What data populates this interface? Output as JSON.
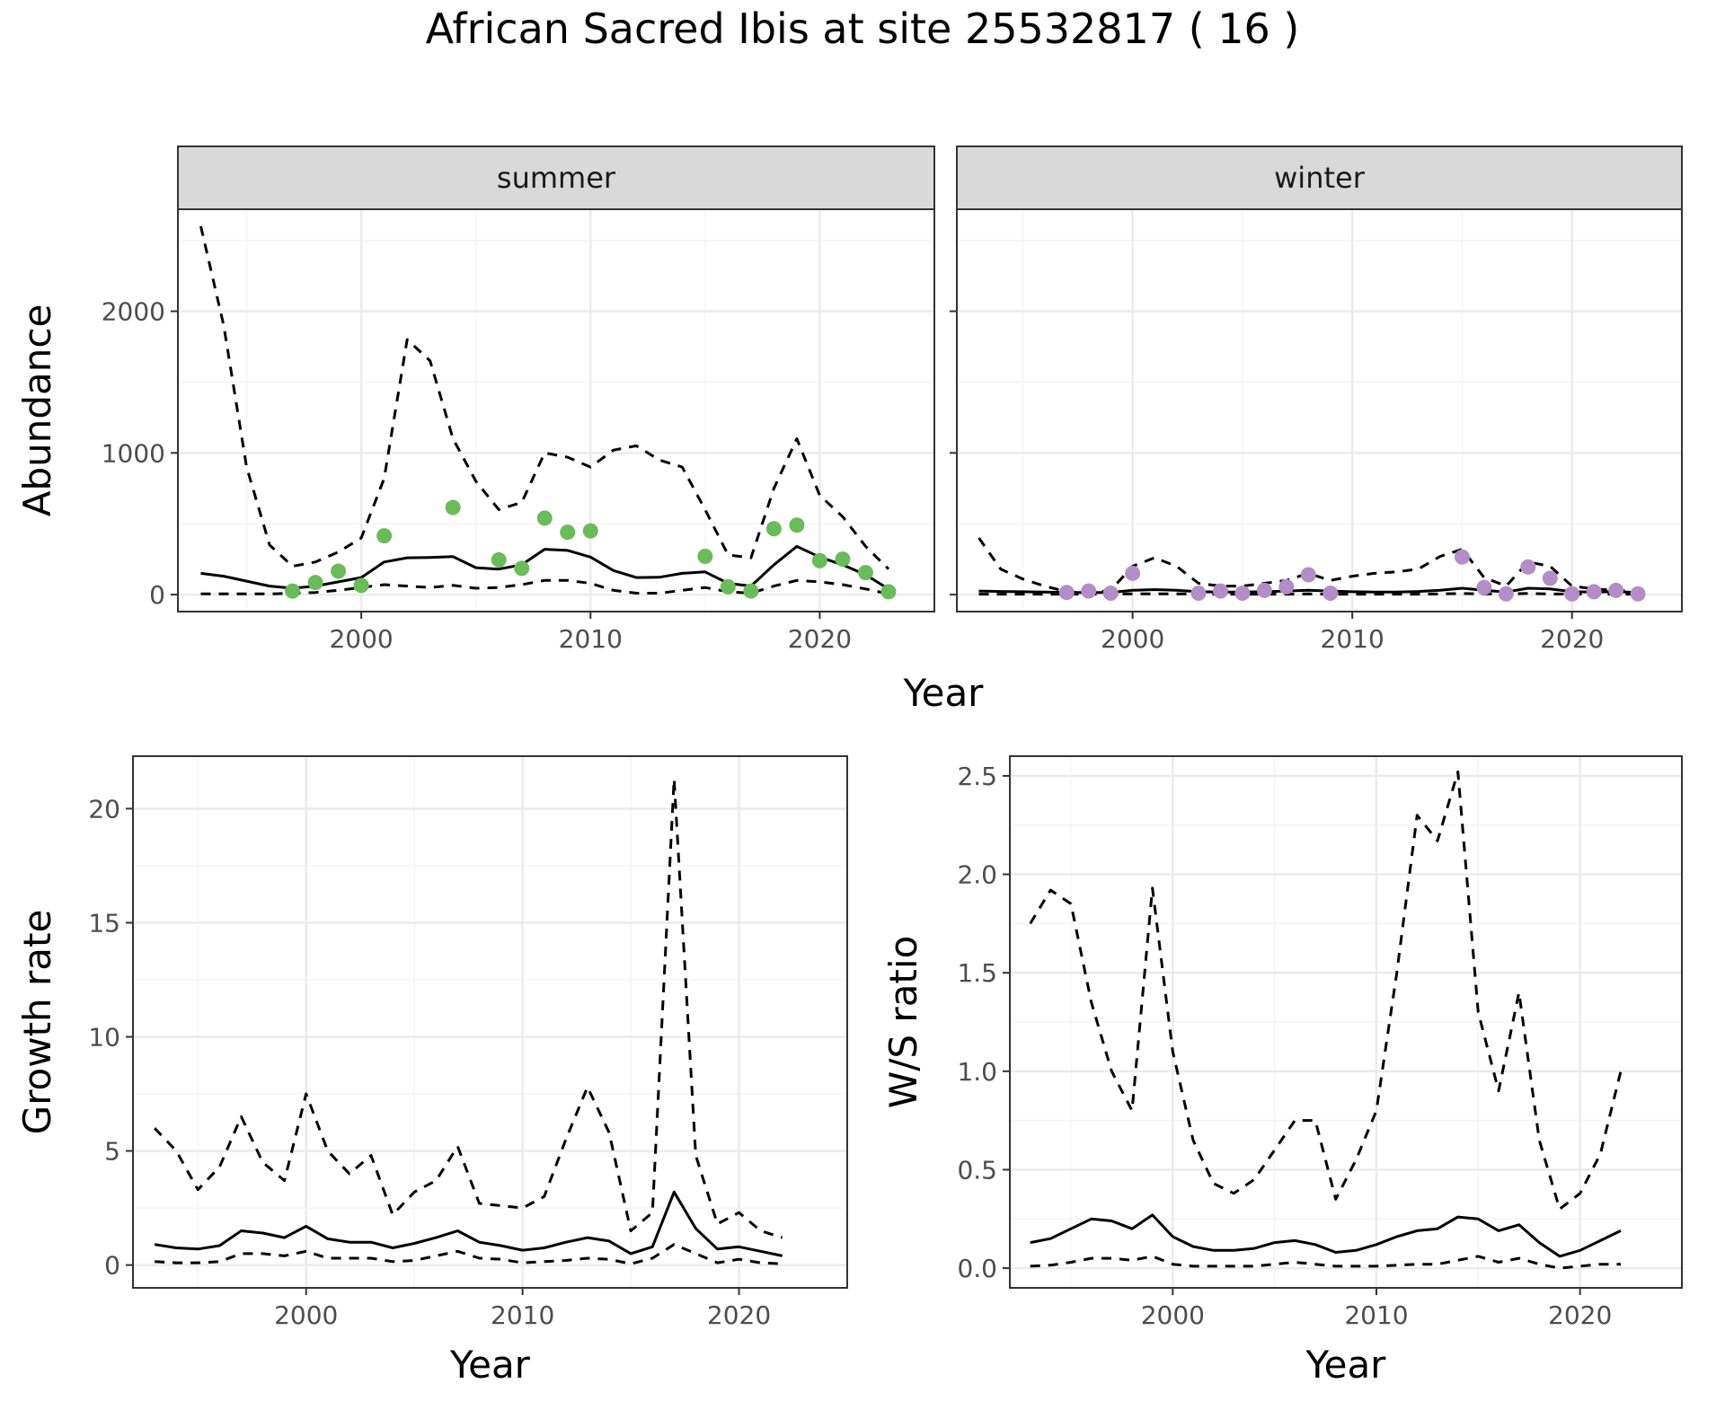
{
  "title": "African Sacred Ibis at site 25532817 ( 16 )",
  "colors": {
    "summer": "#6ABB59",
    "winter": "#B48CC8",
    "line": "#000000",
    "strip": "#d9d9d9",
    "grid_major": "#ebebeb",
    "grid_minor": "#f5f5f5"
  },
  "chart_data": [
    {
      "id": "abundance-summer",
      "type": "line",
      "strip": "summer",
      "xlabel": "Year",
      "ylabel": "Abundance",
      "xlim": [
        1992,
        2025
      ],
      "ylim": [
        -120,
        2720
      ],
      "xticks": [
        2000,
        2010,
        2020
      ],
      "yticks": [
        0,
        1000,
        2000
      ],
      "lines": [
        {
          "role": "estimate",
          "style": "solid",
          "x": [
            1993,
            1994,
            1995,
            1996,
            1997,
            1998,
            1999,
            2000,
            2001,
            2002,
            2003,
            2004,
            2005,
            2006,
            2007,
            2008,
            2009,
            2010,
            2011,
            2012,
            2013,
            2014,
            2015,
            2016,
            2017,
            2018,
            2019,
            2020,
            2021,
            2022,
            2023
          ],
          "y": [
            150,
            130,
            95,
            60,
            45,
            60,
            90,
            120,
            230,
            260,
            262,
            268,
            190,
            180,
            210,
            320,
            312,
            265,
            170,
            120,
            122,
            150,
            160,
            80,
            60,
            210,
            340,
            265,
            210,
            140,
            40
          ]
        },
        {
          "role": "upper",
          "style": "dashed",
          "x": [
            1993,
            1994,
            1995,
            1996,
            1997,
            1998,
            1999,
            2000,
            2001,
            2002,
            2003,
            2004,
            2005,
            2006,
            2007,
            2008,
            2009,
            2010,
            2011,
            2012,
            2013,
            2014,
            2015,
            2016,
            2017,
            2018,
            2019,
            2020,
            2021,
            2022,
            2023
          ],
          "y": [
            2600,
            1900,
            900,
            350,
            200,
            230,
            300,
            400,
            820,
            1800,
            1650,
            1100,
            800,
            600,
            650,
            1000,
            970,
            900,
            1020,
            1050,
            950,
            900,
            600,
            280,
            260,
            750,
            1100,
            700,
            550,
            340,
            180
          ]
        },
        {
          "role": "lower",
          "style": "dashed",
          "x": [
            1993,
            1994,
            1995,
            1996,
            1997,
            1998,
            1999,
            2000,
            2001,
            2002,
            2003,
            2004,
            2005,
            2006,
            2007,
            2008,
            2009,
            2010,
            2011,
            2012,
            2013,
            2014,
            2015,
            2016,
            2017,
            2018,
            2019,
            2020,
            2021,
            2022,
            2023
          ],
          "y": [
            5,
            5,
            5,
            5,
            10,
            15,
            30,
            50,
            70,
            60,
            50,
            65,
            45,
            50,
            70,
            100,
            100,
            80,
            30,
            10,
            10,
            30,
            50,
            20,
            10,
            60,
            100,
            90,
            70,
            40,
            5
          ]
        }
      ],
      "points": {
        "series": "summer",
        "x": [
          1997,
          1998,
          1999,
          2000,
          2001,
          2004,
          2006,
          2007,
          2008,
          2009,
          2010,
          2015,
          2016,
          2017,
          2018,
          2019,
          2020,
          2021,
          2022,
          2023
        ],
        "y": [
          25,
          85,
          165,
          65,
          415,
          615,
          245,
          185,
          540,
          440,
          450,
          270,
          55,
          25,
          465,
          490,
          240,
          250,
          155,
          20
        ]
      }
    },
    {
      "id": "abundance-winter",
      "type": "line",
      "strip": "winter",
      "xlabel": "Year",
      "ylabel": "",
      "xlim": [
        1992,
        2025
      ],
      "ylim": [
        -120,
        2720
      ],
      "xticks": [
        2000,
        2010,
        2020
      ],
      "yticks": [
        0,
        1000,
        2000
      ],
      "lines": [
        {
          "role": "estimate",
          "style": "solid",
          "x": [
            1993,
            1994,
            1995,
            1996,
            1997,
            1998,
            1999,
            2000,
            2001,
            2002,
            2003,
            2004,
            2005,
            2006,
            2007,
            2008,
            2009,
            2010,
            2011,
            2012,
            2013,
            2014,
            2015,
            2016,
            2017,
            2018,
            2019,
            2020,
            2021,
            2022,
            2023
          ],
          "y": [
            25,
            22,
            20,
            18,
            15,
            15,
            15,
            30,
            35,
            30,
            20,
            18,
            18,
            20,
            25,
            30,
            25,
            20,
            18,
            18,
            22,
            30,
            45,
            30,
            18,
            45,
            40,
            20,
            18,
            20,
            15
          ]
        },
        {
          "role": "upper",
          "style": "dashed",
          "x": [
            1993,
            1994,
            1995,
            1996,
            1997,
            1998,
            1999,
            2000,
            2001,
            2002,
            2003,
            2004,
            2005,
            2006,
            2007,
            2008,
            2009,
            2010,
            2011,
            2012,
            2013,
            2014,
            2015,
            2016,
            2017,
            2018,
            2019,
            2020,
            2021,
            2022,
            2023
          ],
          "y": [
            400,
            180,
            110,
            60,
            20,
            10,
            30,
            200,
            260,
            200,
            80,
            60,
            60,
            80,
            100,
            150,
            100,
            130,
            150,
            160,
            180,
            270,
            320,
            120,
            60,
            230,
            200,
            60,
            40,
            30,
            20
          ]
        },
        {
          "role": "lower",
          "style": "dashed",
          "x": [
            1993,
            1994,
            1995,
            1996,
            1997,
            1998,
            1999,
            2000,
            2001,
            2002,
            2003,
            2004,
            2005,
            2006,
            2007,
            2008,
            2009,
            2010,
            2011,
            2012,
            2013,
            2014,
            2015,
            2016,
            2017,
            2018,
            2019,
            2020,
            2021,
            2022,
            2023
          ],
          "y": [
            3,
            3,
            3,
            3,
            3,
            3,
            3,
            5,
            5,
            5,
            3,
            3,
            3,
            3,
            3,
            5,
            3,
            3,
            3,
            3,
            3,
            5,
            8,
            5,
            3,
            8,
            5,
            3,
            3,
            3,
            3
          ]
        }
      ],
      "points": {
        "series": "winter",
        "x": [
          1997,
          1998,
          1999,
          2000,
          2003,
          2004,
          2005,
          2006,
          2007,
          2008,
          2009,
          2015,
          2016,
          2017,
          2018,
          2019,
          2020,
          2021,
          2022,
          2023
        ],
        "y": [
          15,
          25,
          10,
          150,
          10,
          25,
          10,
          30,
          55,
          140,
          10,
          265,
          50,
          5,
          195,
          115,
          5,
          20,
          30,
          5
        ]
      }
    },
    {
      "id": "growth-rate",
      "type": "line",
      "xlabel": "Year",
      "ylabel": "Growth rate",
      "xlim": [
        1992,
        2025
      ],
      "ylim": [
        -1,
        22.3
      ],
      "xticks": [
        2000,
        2010,
        2020
      ],
      "yticks": [
        0,
        5,
        10,
        15,
        20
      ],
      "lines": [
        {
          "role": "estimate",
          "style": "solid",
          "x": [
            1993,
            1994,
            1995,
            1996,
            1997,
            1998,
            1999,
            2000,
            2001,
            2002,
            2003,
            2004,
            2005,
            2006,
            2007,
            2008,
            2009,
            2010,
            2011,
            2012,
            2013,
            2014,
            2015,
            2016,
            2017,
            2018,
            2019,
            2020,
            2021,
            2022
          ],
          "y": [
            0.9,
            0.75,
            0.7,
            0.85,
            1.5,
            1.4,
            1.2,
            1.7,
            1.15,
            1.0,
            1.0,
            0.75,
            0.95,
            1.2,
            1.5,
            1.0,
            0.85,
            0.65,
            0.75,
            1.0,
            1.2,
            1.05,
            0.5,
            0.8,
            3.2,
            1.6,
            0.7,
            0.8,
            0.6,
            0.4
          ]
        },
        {
          "role": "upper",
          "style": "dashed",
          "x": [
            1993,
            1994,
            1995,
            1996,
            1997,
            1998,
            1999,
            2000,
            2001,
            2002,
            2003,
            2004,
            2005,
            2006,
            2007,
            2008,
            2009,
            2010,
            2011,
            2012,
            2013,
            2014,
            2015,
            2016,
            2017,
            2018,
            2019,
            2020,
            2021,
            2022
          ],
          "y": [
            6.0,
            5.0,
            3.3,
            4.3,
            6.5,
            4.5,
            3.7,
            7.5,
            5.0,
            4.0,
            4.8,
            2.2,
            3.2,
            3.7,
            5.2,
            2.7,
            2.6,
            2.5,
            3.0,
            5.5,
            7.8,
            5.8,
            1.5,
            2.3,
            21.3,
            4.8,
            1.8,
            2.3,
            1.5,
            1.2
          ]
        },
        {
          "role": "lower",
          "style": "dashed",
          "x": [
            1993,
            1994,
            1995,
            1996,
            1997,
            1998,
            1999,
            2000,
            2001,
            2002,
            2003,
            2004,
            2005,
            2006,
            2007,
            2008,
            2009,
            2010,
            2011,
            2012,
            2013,
            2014,
            2015,
            2016,
            2017,
            2018,
            2019,
            2020,
            2021,
            2022
          ],
          "y": [
            0.15,
            0.1,
            0.1,
            0.15,
            0.5,
            0.5,
            0.4,
            0.6,
            0.3,
            0.3,
            0.3,
            0.15,
            0.2,
            0.4,
            0.6,
            0.3,
            0.25,
            0.1,
            0.15,
            0.2,
            0.3,
            0.25,
            0.05,
            0.3,
            0.9,
            0.5,
            0.1,
            0.25,
            0.1,
            0.05
          ]
        }
      ]
    },
    {
      "id": "ws-ratio",
      "type": "line",
      "xlabel": "Year",
      "ylabel": "W/S ratio",
      "xlim": [
        1992,
        2025
      ],
      "ylim": [
        -0.1,
        2.6
      ],
      "xticks": [
        2000,
        2010,
        2020
      ],
      "yticks": [
        0.0,
        0.5,
        1.0,
        1.5,
        2.0,
        2.5
      ],
      "ytick_labels": [
        "0.0",
        "0.5",
        "1.0",
        "1.5",
        "2.0",
        "2.5"
      ],
      "lines": [
        {
          "role": "estimate",
          "style": "solid",
          "x": [
            1993,
            1994,
            1995,
            1996,
            1997,
            1998,
            1999,
            2000,
            2001,
            2002,
            2003,
            2004,
            2005,
            2006,
            2007,
            2008,
            2009,
            2010,
            2011,
            2012,
            2013,
            2014,
            2015,
            2016,
            2017,
            2018,
            2019,
            2020,
            2021,
            2022
          ],
          "y": [
            0.13,
            0.15,
            0.2,
            0.25,
            0.24,
            0.2,
            0.27,
            0.16,
            0.11,
            0.09,
            0.09,
            0.1,
            0.13,
            0.14,
            0.12,
            0.08,
            0.09,
            0.12,
            0.16,
            0.19,
            0.2,
            0.26,
            0.25,
            0.19,
            0.22,
            0.13,
            0.06,
            0.09,
            0.14,
            0.19
          ]
        },
        {
          "role": "upper",
          "style": "dashed",
          "x": [
            1993,
            1994,
            1995,
            1996,
            1997,
            1998,
            1999,
            2000,
            2001,
            2002,
            2003,
            2004,
            2005,
            2006,
            2007,
            2008,
            2009,
            2010,
            2011,
            2012,
            2013,
            2014,
            2015,
            2016,
            2017,
            2018,
            2019,
            2020,
            2021,
            2022
          ],
          "y": [
            1.75,
            1.92,
            1.85,
            1.35,
            1.0,
            0.8,
            1.93,
            1.1,
            0.65,
            0.43,
            0.38,
            0.45,
            0.6,
            0.75,
            0.75,
            0.35,
            0.55,
            0.8,
            1.5,
            2.3,
            2.17,
            2.52,
            1.3,
            0.9,
            1.4,
            0.65,
            0.3,
            0.38,
            0.58,
            1.0
          ]
        },
        {
          "role": "lower",
          "style": "dashed",
          "x": [
            1993,
            1994,
            1995,
            1996,
            1997,
            1998,
            1999,
            2000,
            2001,
            2002,
            2003,
            2004,
            2005,
            2006,
            2007,
            2008,
            2009,
            2010,
            2011,
            2012,
            2013,
            2014,
            2015,
            2016,
            2017,
            2018,
            2019,
            2020,
            2021,
            2022
          ],
          "y": [
            0.01,
            0.015,
            0.03,
            0.05,
            0.05,
            0.04,
            0.06,
            0.02,
            0.01,
            0.01,
            0.01,
            0.01,
            0.02,
            0.03,
            0.02,
            0.01,
            0.01,
            0.01,
            0.015,
            0.02,
            0.02,
            0.04,
            0.06,
            0.03,
            0.05,
            0.02,
            0.0,
            0.01,
            0.02,
            0.02
          ]
        }
      ]
    }
  ]
}
